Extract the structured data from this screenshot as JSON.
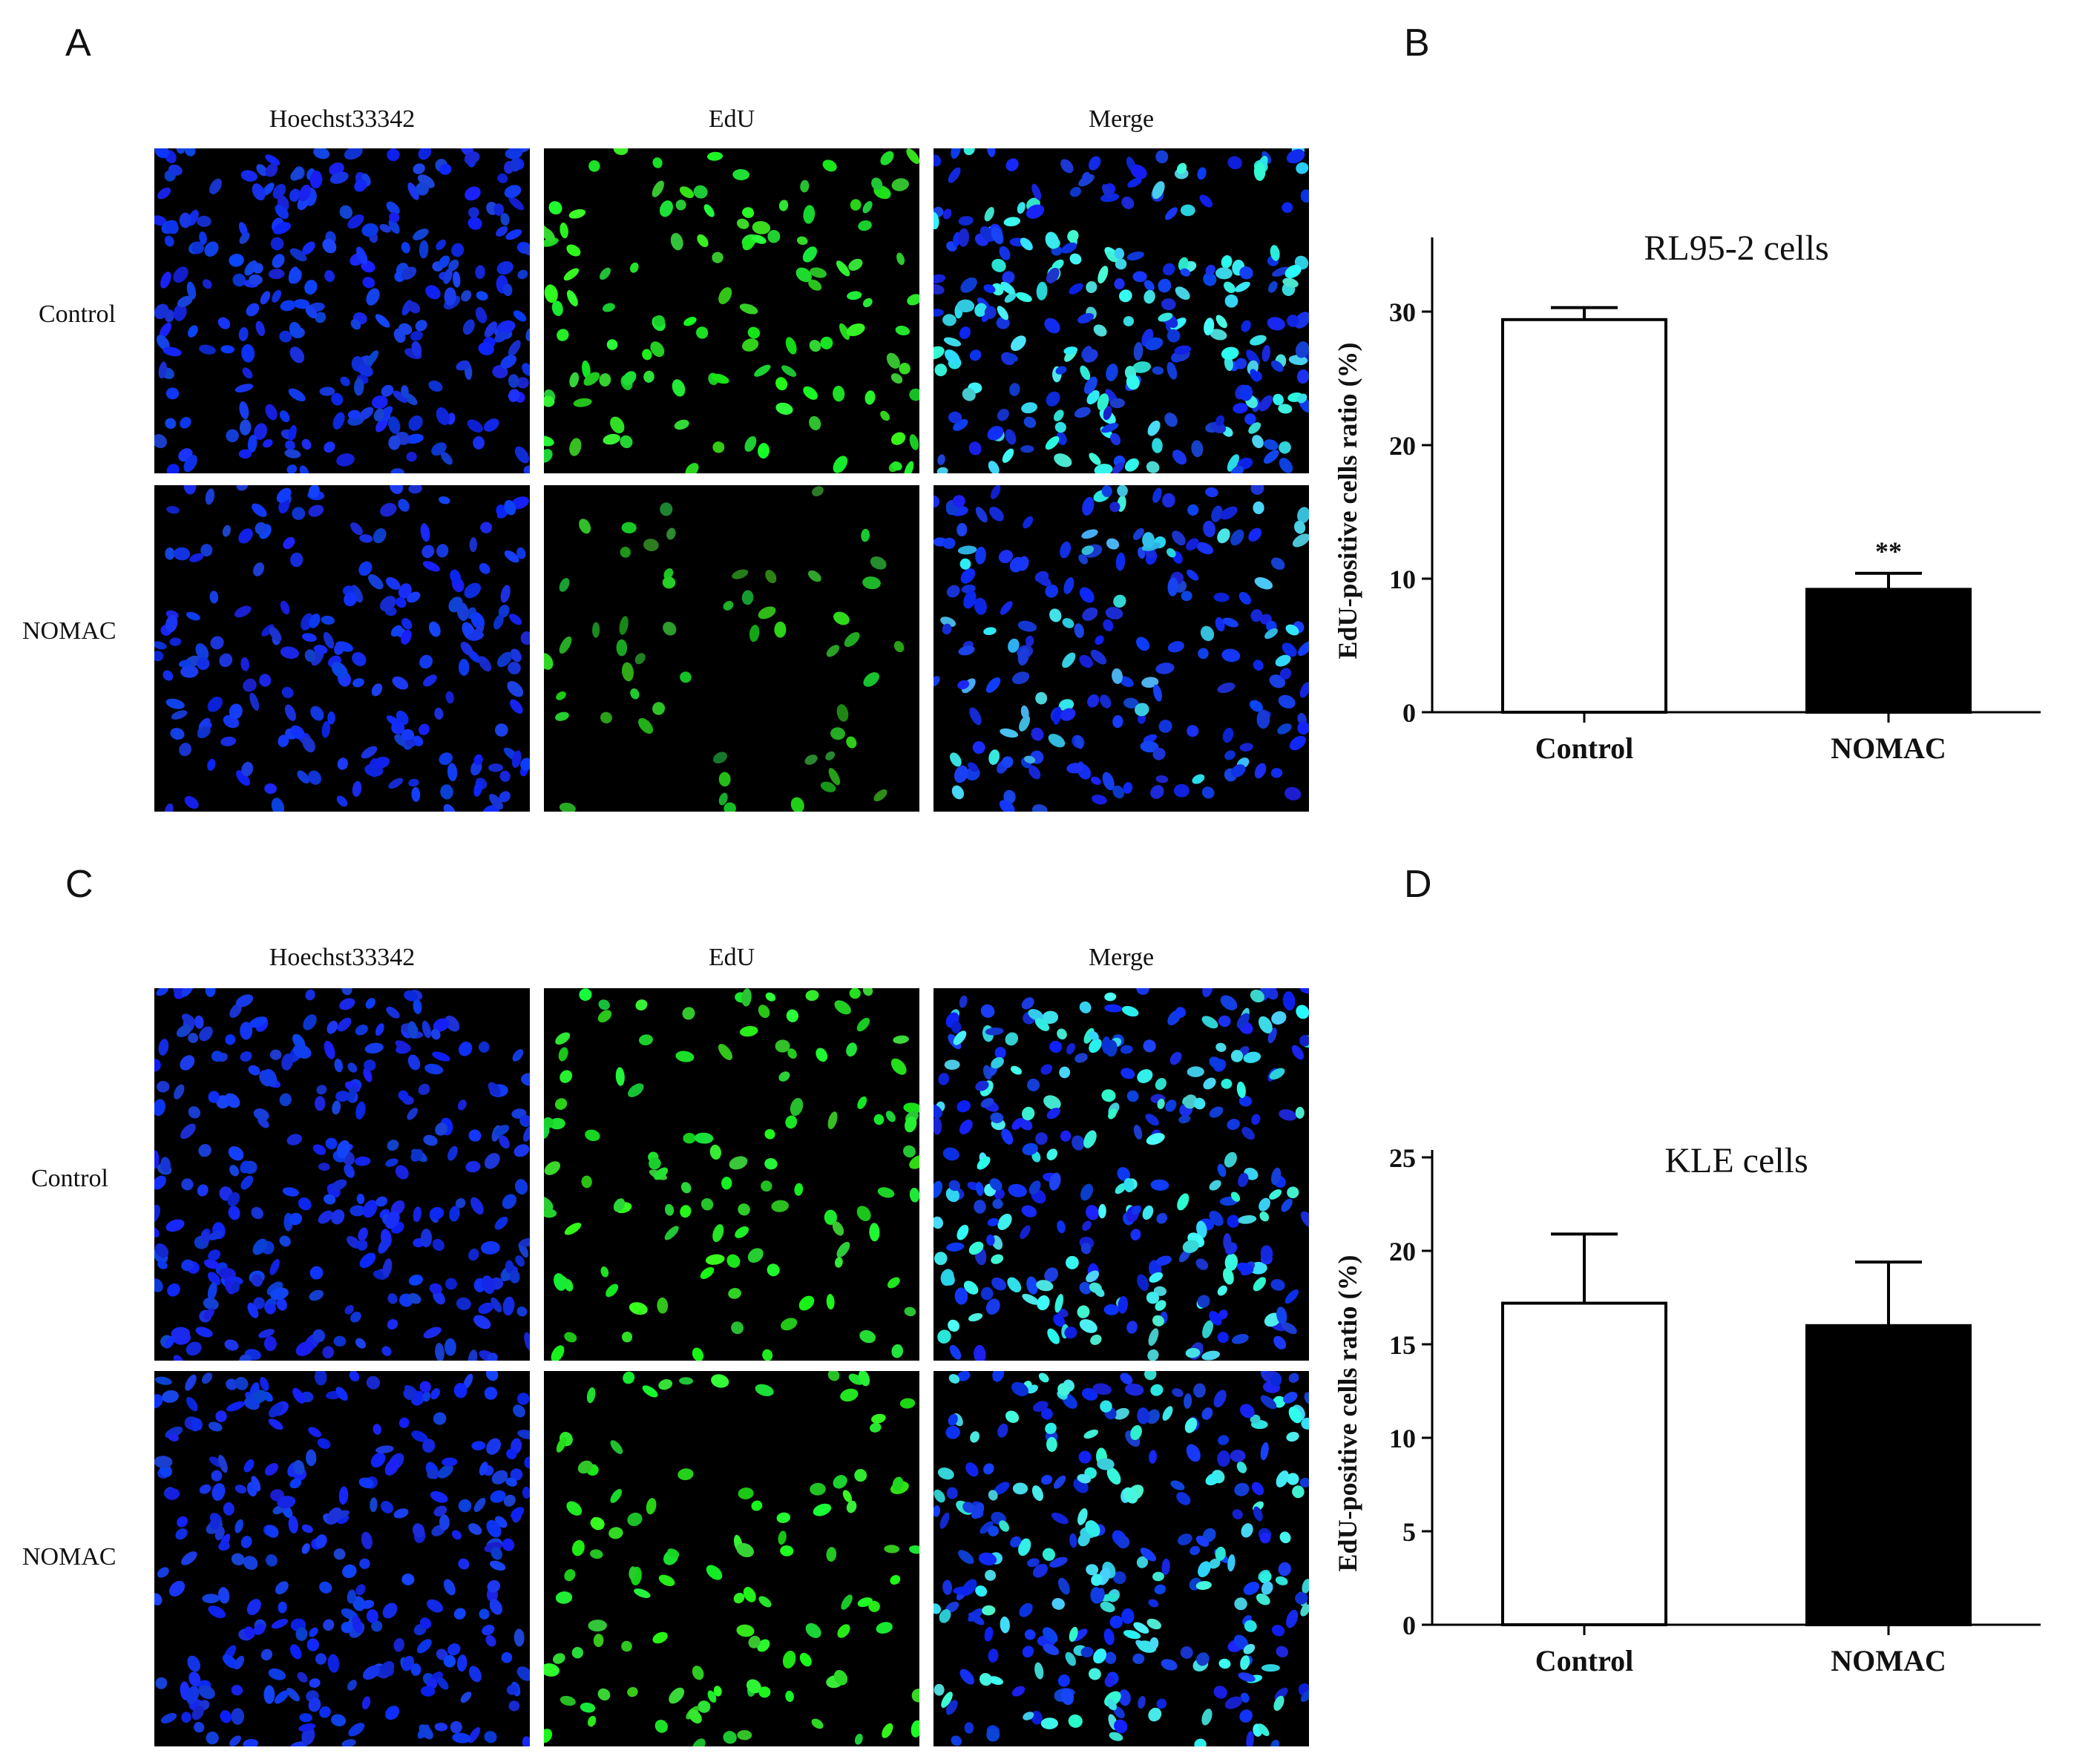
{
  "panels": {
    "A": {
      "letter": "A",
      "columns": [
        "Hoechst33342",
        "EdU",
        "Merge"
      ],
      "rows": [
        "Control",
        "NOMAC"
      ]
    },
    "B": {
      "letter": "B"
    },
    "C": {
      "letter": "C",
      "columns": [
        "Hoechst33342",
        "EdU",
        "Merge"
      ],
      "rows": [
        "Control",
        "NOMAC"
      ]
    },
    "D": {
      "letter": "D"
    }
  },
  "colors": {
    "hoechst": "#1a2fff",
    "edu": "#22ee22",
    "merge": "#33e0e0",
    "control_bar": "#ffffff",
    "nomac_bar": "#000000"
  },
  "chart_data": [
    {
      "panel": "B",
      "type": "bar",
      "title": "RL95-2 cells",
      "ylabel": "EdU-positive cells ratio (%)",
      "categories": [
        "Control",
        "NOMAC"
      ],
      "values": [
        29.4,
        9.2
      ],
      "errors": [
        0.9,
        1.2
      ],
      "bar_colors": [
        "#ffffff",
        "#000000"
      ],
      "ylim": [
        0,
        35
      ],
      "yticks": [
        0,
        10,
        20,
        30
      ],
      "annotations": [
        {
          "category": "NOMAC",
          "text": "**"
        }
      ],
      "grid": false,
      "legend": "none"
    },
    {
      "panel": "D",
      "type": "bar",
      "title": "KLE cells",
      "ylabel": "EdU-positive cells ratio (%)",
      "categories": [
        "Control",
        "NOMAC"
      ],
      "values": [
        17.2,
        16.0
      ],
      "errors": [
        3.7,
        3.4
      ],
      "bar_colors": [
        "#ffffff",
        "#000000"
      ],
      "ylim": [
        0,
        25
      ],
      "yticks": [
        0,
        5,
        10,
        15,
        20,
        25
      ],
      "annotations": [],
      "grid": false,
      "legend": "none"
    }
  ]
}
